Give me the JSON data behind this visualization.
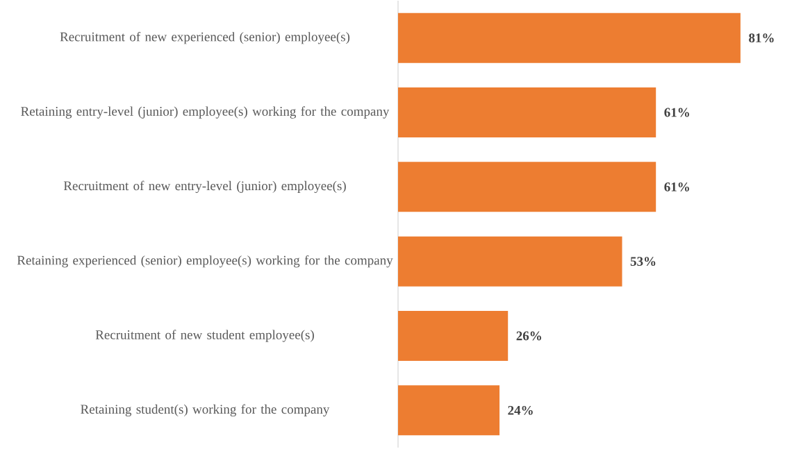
{
  "chart_data": {
    "type": "bar",
    "orientation": "horizontal",
    "categories": [
      "Recruitment of new experienced (senior) employee(s)",
      "Retaining entry-level (junior) employee(s) working for the company",
      "Recruitment of new entry-level (junior) employee(s)",
      "Retaining experienced (senior) employee(s) working for the company",
      "Recruitment of new student employee(s)",
      "Retaining student(s) working for the company"
    ],
    "values": [
      81,
      61,
      61,
      53,
      26,
      24
    ],
    "value_labels": [
      "**81%**",
      "**61%**",
      "**61%**",
      "**53%**",
      "**26%**",
      "**24%**"
    ],
    "color": "#ed7d31"
  }
}
